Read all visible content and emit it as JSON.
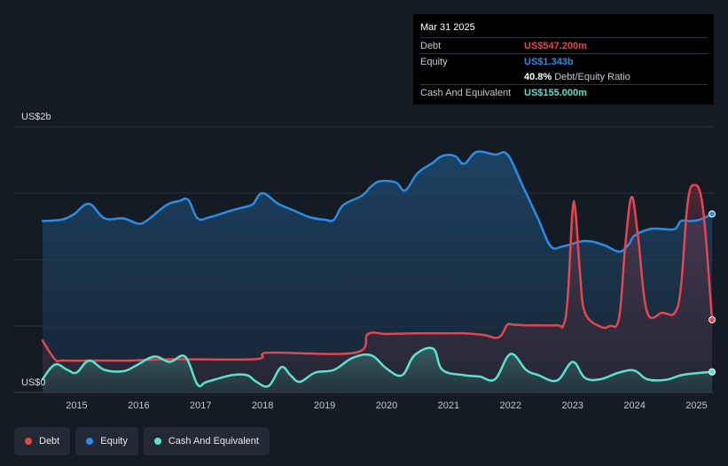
{
  "tooltip": {
    "date": "Mar 31 2025",
    "debt_label": "Debt",
    "debt_value": "US$547.200m",
    "equity_label": "Equity",
    "equity_value": "US$1.343b",
    "ratio_value": "40.8%",
    "ratio_label": "Debt/Equity Ratio",
    "cash_label": "Cash And Equivalent",
    "cash_value": "US$155.000m"
  },
  "legend": [
    {
      "label": "Debt",
      "color": "#e2474f"
    },
    {
      "label": "Equity",
      "color": "#2a8de4"
    },
    {
      "label": "Cash And Equivalent",
      "color": "#5fe0cc"
    }
  ],
  "chart_data": {
    "type": "area",
    "y_top_label": "US$2b",
    "y_bottom_label": "US$0",
    "x_ticks": [
      "2015",
      "2016",
      "2017",
      "2018",
      "2019",
      "2020",
      "2021",
      "2022",
      "2023",
      "2024",
      "2025"
    ],
    "ylim": [
      0,
      2000
    ],
    "xlim": [
      2014.45,
      2025.25
    ],
    "grid": true,
    "series": [
      {
        "name": "Equity",
        "color": "#2a8de4",
        "points": [
          [
            2014.45,
            1290
          ],
          [
            2014.75,
            1300
          ],
          [
            2014.95,
            1340
          ],
          [
            2015.2,
            1420
          ],
          [
            2015.45,
            1310
          ],
          [
            2015.75,
            1310
          ],
          [
            2016.0,
            1270
          ],
          [
            2016.15,
            1300
          ],
          [
            2016.45,
            1410
          ],
          [
            2016.65,
            1440
          ],
          [
            2016.8,
            1450
          ],
          [
            2016.95,
            1310
          ],
          [
            2017.15,
            1320
          ],
          [
            2017.5,
            1370
          ],
          [
            2017.75,
            1400
          ],
          [
            2017.85,
            1420
          ],
          [
            2018.0,
            1500
          ],
          [
            2018.25,
            1420
          ],
          [
            2018.5,
            1370
          ],
          [
            2018.75,
            1320
          ],
          [
            2019.0,
            1300
          ],
          [
            2019.15,
            1300
          ],
          [
            2019.3,
            1410
          ],
          [
            2019.6,
            1480
          ],
          [
            2019.75,
            1550
          ],
          [
            2019.9,
            1590
          ],
          [
            2020.15,
            1580
          ],
          [
            2020.3,
            1520
          ],
          [
            2020.5,
            1650
          ],
          [
            2020.75,
            1730
          ],
          [
            2020.9,
            1780
          ],
          [
            2021.1,
            1780
          ],
          [
            2021.25,
            1720
          ],
          [
            2021.45,
            1810
          ],
          [
            2021.75,
            1790
          ],
          [
            2021.95,
            1790
          ],
          [
            2022.2,
            1550
          ],
          [
            2022.45,
            1300
          ],
          [
            2022.65,
            1100
          ],
          [
            2022.85,
            1100
          ],
          [
            2023.2,
            1140
          ],
          [
            2023.5,
            1110
          ],
          [
            2023.75,
            1060
          ],
          [
            2023.9,
            1110
          ],
          [
            2024.0,
            1180
          ],
          [
            2024.25,
            1230
          ],
          [
            2024.45,
            1230
          ],
          [
            2024.65,
            1230
          ],
          [
            2024.75,
            1290
          ],
          [
            2024.9,
            1290
          ],
          [
            2025.05,
            1300
          ],
          [
            2025.25,
            1343
          ]
        ]
      },
      {
        "name": "Debt",
        "color": "#e2474f",
        "points": [
          [
            2014.45,
            390
          ],
          [
            2014.65,
            250
          ],
          [
            2014.8,
            240
          ],
          [
            2015.5,
            240
          ],
          [
            2015.85,
            240
          ],
          [
            2016.5,
            250
          ],
          [
            2017.85,
            250
          ],
          [
            2018.0,
            290
          ],
          [
            2018.2,
            300
          ],
          [
            2019.5,
            300
          ],
          [
            2019.7,
            440
          ],
          [
            2020.0,
            440
          ],
          [
            2020.5,
            445
          ],
          [
            2021.0,
            445
          ],
          [
            2021.25,
            445
          ],
          [
            2021.6,
            430
          ],
          [
            2021.75,
            410
          ],
          [
            2021.85,
            430
          ],
          [
            2021.95,
            510
          ],
          [
            2022.05,
            510
          ],
          [
            2022.3,
            505
          ],
          [
            2022.75,
            505
          ],
          [
            2022.85,
            505
          ],
          [
            2022.92,
            700
          ],
          [
            2023.0,
            1370
          ],
          [
            2023.05,
            1350
          ],
          [
            2023.12,
            900
          ],
          [
            2023.2,
            600
          ],
          [
            2023.45,
            495
          ],
          [
            2023.6,
            500
          ],
          [
            2023.75,
            560
          ],
          [
            2023.85,
            1100
          ],
          [
            2023.95,
            1470
          ],
          [
            2024.05,
            1200
          ],
          [
            2024.2,
            610
          ],
          [
            2024.45,
            600
          ],
          [
            2024.65,
            600
          ],
          [
            2024.75,
            800
          ],
          [
            2024.85,
            1400
          ],
          [
            2024.95,
            1560
          ],
          [
            2025.1,
            1400
          ],
          [
            2025.25,
            547
          ]
        ]
      },
      {
        "name": "Cash And Equivalent",
        "color": "#5fe0cc",
        "points": [
          [
            2014.45,
            100
          ],
          [
            2014.65,
            210
          ],
          [
            2014.85,
            170
          ],
          [
            2015.0,
            150
          ],
          [
            2015.2,
            240
          ],
          [
            2015.45,
            170
          ],
          [
            2015.75,
            160
          ],
          [
            2015.95,
            200
          ],
          [
            2016.25,
            270
          ],
          [
            2016.5,
            230
          ],
          [
            2016.75,
            270
          ],
          [
            2016.95,
            60
          ],
          [
            2017.1,
            80
          ],
          [
            2017.5,
            130
          ],
          [
            2017.75,
            130
          ],
          [
            2017.9,
            80
          ],
          [
            2018.1,
            50
          ],
          [
            2018.3,
            190
          ],
          [
            2018.45,
            130
          ],
          [
            2018.6,
            80
          ],
          [
            2018.85,
            150
          ],
          [
            2019.15,
            170
          ],
          [
            2019.45,
            260
          ],
          [
            2019.75,
            280
          ],
          [
            2020.0,
            180
          ],
          [
            2020.25,
            130
          ],
          [
            2020.45,
            280
          ],
          [
            2020.75,
            330
          ],
          [
            2020.9,
            170
          ],
          [
            2021.25,
            130
          ],
          [
            2021.5,
            120
          ],
          [
            2021.75,
            100
          ],
          [
            2022.0,
            290
          ],
          [
            2022.25,
            170
          ],
          [
            2022.45,
            130
          ],
          [
            2022.75,
            90
          ],
          [
            2023.0,
            230
          ],
          [
            2023.2,
            110
          ],
          [
            2023.45,
            100
          ],
          [
            2023.75,
            150
          ],
          [
            2024.0,
            165
          ],
          [
            2024.2,
            100
          ],
          [
            2024.5,
            95
          ],
          [
            2024.75,
            130
          ],
          [
            2025.0,
            145
          ],
          [
            2025.25,
            155
          ]
        ]
      }
    ]
  }
}
